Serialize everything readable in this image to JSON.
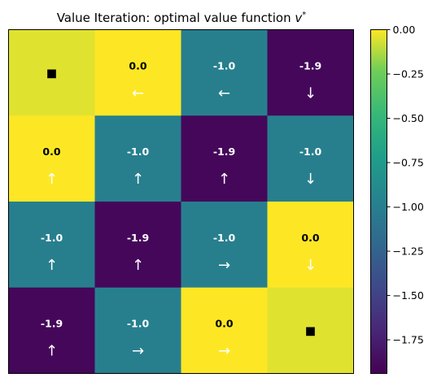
{
  "chart_data": {
    "type": "heatmap",
    "title": "Value Iteration: optimal value function",
    "title_symbol": "v",
    "title_superscript": "*",
    "rows": 4,
    "cols": 4,
    "cells": [
      [
        {
          "value": -0.05,
          "label": "",
          "arrow": "",
          "terminal": true,
          "marker": "■"
        },
        {
          "value": 0.0,
          "label": "0.0",
          "arrow": "←"
        },
        {
          "value": -1.0,
          "label": "-1.0",
          "arrow": "←"
        },
        {
          "value": -1.9,
          "label": "-1.9",
          "arrow": "↓"
        }
      ],
      [
        {
          "value": 0.0,
          "label": "0.0",
          "arrow": "↑"
        },
        {
          "value": -1.0,
          "label": "-1.0",
          "arrow": "↑"
        },
        {
          "value": -1.9,
          "label": "-1.9",
          "arrow": "↑"
        },
        {
          "value": -1.0,
          "label": "-1.0",
          "arrow": "↓"
        }
      ],
      [
        {
          "value": -1.0,
          "label": "-1.0",
          "arrow": "↑"
        },
        {
          "value": -1.9,
          "label": "-1.9",
          "arrow": "↑"
        },
        {
          "value": -1.0,
          "label": "-1.0",
          "arrow": "→"
        },
        {
          "value": 0.0,
          "label": "0.0",
          "arrow": "↓"
        }
      ],
      [
        {
          "value": -1.9,
          "label": "-1.9",
          "arrow": "↑"
        },
        {
          "value": -1.0,
          "label": "-1.0",
          "arrow": "→"
        },
        {
          "value": 0.0,
          "label": "0.0",
          "arrow": "→"
        },
        {
          "value": -0.05,
          "label": "",
          "arrow": "",
          "terminal": true,
          "marker": "■"
        }
      ]
    ],
    "colormap": "viridis",
    "vmin": -1.94,
    "vmax": 0.0,
    "colorbar_ticks": [
      "0.00",
      "−0.25",
      "−0.50",
      "−0.75",
      "−1.00",
      "−1.25",
      "−1.50",
      "−1.75"
    ],
    "colorbar_tick_values": [
      0.0,
      -0.25,
      -0.5,
      -0.75,
      -1.0,
      -1.25,
      -1.5,
      -1.75
    ],
    "grid": false
  }
}
